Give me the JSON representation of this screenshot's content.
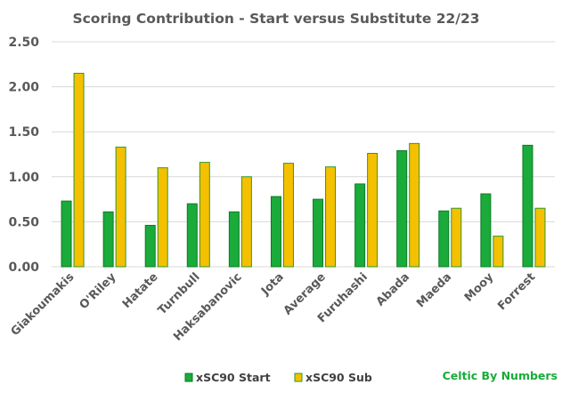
{
  "colors": {
    "start": "#1aab3a",
    "start_border": "#0e7a25",
    "sub": "#f5c000",
    "sub_border": "#2e9a2e",
    "credit": "#1aab3a"
  },
  "credit": "Celtic By Numbers",
  "chart_data": {
    "type": "bar",
    "title": "Scoring Contribution - Start versus Substitute 22/23",
    "xlabel": "",
    "ylabel": "",
    "ylim": [
      0,
      2.5
    ],
    "ytick_labels": [
      "0.00",
      "0.50",
      "1.00",
      "1.50",
      "2.00",
      "2.50"
    ],
    "yticks": [
      0,
      0.5,
      1.0,
      1.5,
      2.0,
      2.5
    ],
    "grid": true,
    "legend_position": "bottom",
    "categories": [
      "Giakoumakis",
      "O'Riley",
      "Hatate",
      "Turnbull",
      "Haksabanovic",
      "Jota",
      "Average",
      "Furuhashi",
      "Abada",
      "Maeda",
      "Mooy",
      "Forrest"
    ],
    "series": [
      {
        "name": "xSC90 Start",
        "values": [
          0.73,
          0.61,
          0.46,
          0.7,
          0.61,
          0.78,
          0.75,
          0.92,
          1.29,
          0.62,
          0.81,
          1.35
        ]
      },
      {
        "name": "xSC90 Sub",
        "values": [
          2.15,
          1.33,
          1.1,
          1.16,
          1.0,
          1.15,
          1.11,
          1.26,
          1.37,
          0.65,
          0.34,
          0.65
        ]
      }
    ]
  }
}
